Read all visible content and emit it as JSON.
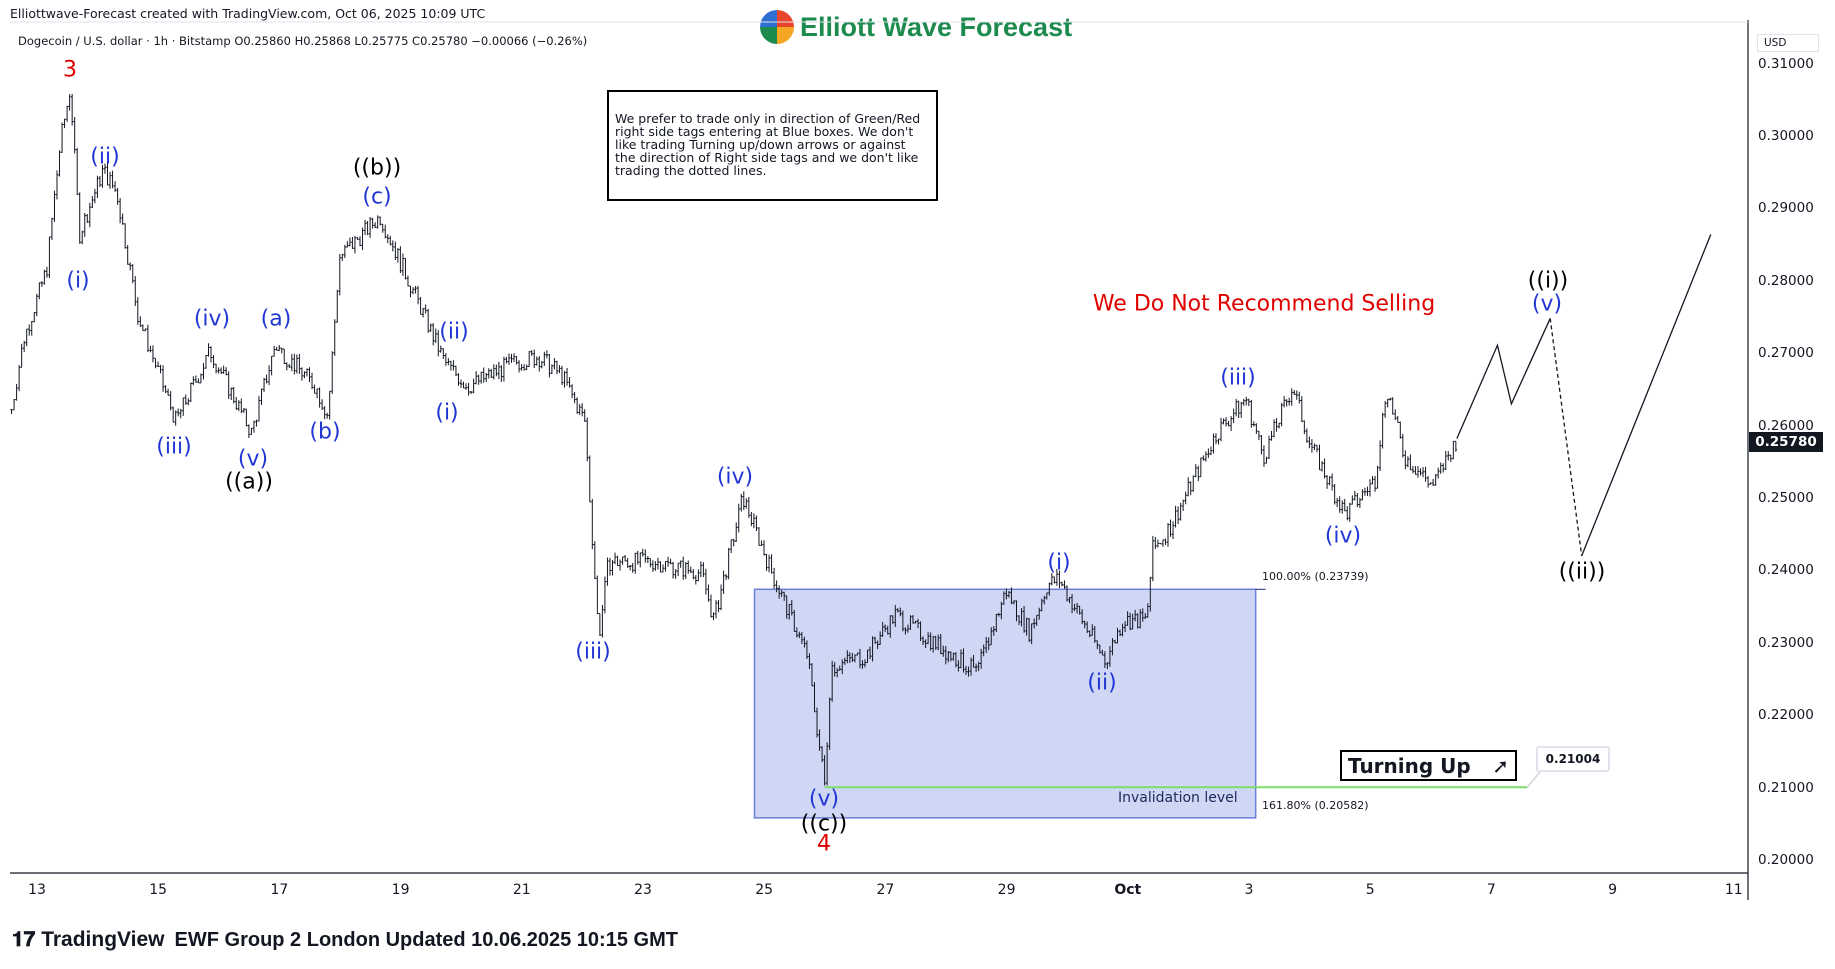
{
  "header": {
    "created": "Elliottwave-Forecast created with TradingView.com, Oct 06, 2025 10:09 UTC",
    "legend": "Dogecoin / U.S. dollar · 1h · Bitstamp  O0.25860  H0.25868  L0.25775  C0.25780  −0.00066 (−0.26%)",
    "logo": "Elliott Wave Forecast"
  },
  "note": "We prefer to trade only in direction of Green/Red right side tags entering at Blue boxes. We don't like trading Turning up/down arrows or against the direction of Right side tags and we don't like trading the dotted lines.",
  "warning": "We Do Not Recommend Selling",
  "fib": {
    "top": "100.00% (0.23739)",
    "bottom": "161.80% (0.20582)"
  },
  "invalidation": {
    "label": "Invalidation level",
    "value": "0.21004"
  },
  "turning": {
    "label": "Turning Up",
    "icon": "arrow-up-right-icon"
  },
  "axis": {
    "currency": "USD",
    "last_price": "0.25780"
  },
  "footer": {
    "brand": "TradingView",
    "text": "EWF Group 2 London Updated 10.06.2025 10:15 GMT"
  },
  "waves": [
    {
      "t": "3",
      "c": "red"
    },
    {
      "t": "(i)",
      "c": "blue"
    },
    {
      "t": "(ii)",
      "c": "blue"
    },
    {
      "t": "(iii)",
      "c": "blue"
    },
    {
      "t": "(iv)",
      "c": "blue"
    },
    {
      "t": "(v)",
      "c": "blue"
    },
    {
      "t": "((a))",
      "c": "black"
    },
    {
      "t": "(a)",
      "c": "blue"
    },
    {
      "t": "(b)",
      "c": "blue"
    },
    {
      "t": "((b))",
      "c": "black"
    },
    {
      "t": "(c)",
      "c": "blue"
    },
    {
      "t": "(i)",
      "c": "blue"
    },
    {
      "t": "(ii)",
      "c": "blue"
    },
    {
      "t": "(iii)",
      "c": "blue"
    },
    {
      "t": "(iv)",
      "c": "blue"
    },
    {
      "t": "(v)",
      "c": "blue"
    },
    {
      "t": "((c))",
      "c": "black"
    },
    {
      "t": "4",
      "c": "red"
    },
    {
      "t": "(i)",
      "c": "blue"
    },
    {
      "t": "(ii)",
      "c": "blue"
    },
    {
      "t": "(iii)",
      "c": "blue"
    },
    {
      "t": "(iv)",
      "c": "blue"
    },
    {
      "t": "((i))",
      "c": "black"
    },
    {
      "t": "(v)",
      "c": "blue"
    },
    {
      "t": "((ii))",
      "c": "black"
    }
  ],
  "chart_data": {
    "type": "line",
    "title": "Dogecoin / U.S. dollar · 1h · Bitstamp",
    "xlabel": "",
    "ylabel": "USD",
    "x_unit": "days since Sep 13 2025",
    "xlim": [
      -0.6,
      28.5
    ],
    "ylim": [
      0.1983,
      0.3121
    ],
    "yticks": [
      "0.31000",
      "0.30000",
      "0.29000",
      "0.28000",
      "0.27000",
      "0.26000",
      "0.25000",
      "0.24000",
      "0.23000",
      "0.22000",
      "0.21000",
      "0.20000"
    ],
    "ytick_values": [
      0.31,
      0.3,
      0.29,
      0.28,
      0.27,
      0.26,
      0.25,
      0.24,
      0.23,
      0.22,
      0.21,
      0.2
    ],
    "xticks": [
      "13",
      "15",
      "17",
      "19",
      "21",
      "23",
      "25",
      "27",
      "29",
      "Oct",
      "3",
      "5",
      "7",
      "9",
      "11"
    ],
    "xtick_values": [
      0,
      2,
      4,
      6,
      8,
      10,
      12,
      14,
      16,
      18,
      20,
      22,
      24,
      26,
      28
    ],
    "price_path": [
      [
        -0.42,
        0.2622
      ],
      [
        -0.22,
        0.2719
      ],
      [
        0.16,
        0.2816
      ],
      [
        0.39,
        0.2994
      ],
      [
        0.55,
        0.3066
      ],
      [
        0.7,
        0.2864
      ],
      [
        1.09,
        0.2953
      ],
      [
        1.32,
        0.2921
      ],
      [
        1.67,
        0.2751
      ],
      [
        2.29,
        0.2606
      ],
      [
        2.48,
        0.2638
      ],
      [
        2.86,
        0.2703
      ],
      [
        3.54,
        0.259
      ],
      [
        3.93,
        0.2711
      ],
      [
        4.6,
        0.2654
      ],
      [
        4.8,
        0.2614
      ],
      [
        4.99,
        0.2832
      ],
      [
        5.66,
        0.2889
      ],
      [
        6.05,
        0.2816
      ],
      [
        6.73,
        0.2687
      ],
      [
        7.11,
        0.2654
      ],
      [
        7.88,
        0.2687
      ],
      [
        8.27,
        0.2695
      ],
      [
        8.66,
        0.267
      ],
      [
        9.04,
        0.2606
      ],
      [
        9.27,
        0.2307
      ],
      [
        9.43,
        0.2412
      ],
      [
        10.2,
        0.2412
      ],
      [
        10.97,
        0.2396
      ],
      [
        11.17,
        0.2331
      ],
      [
        11.65,
        0.2501
      ],
      [
        12.13,
        0.2396
      ],
      [
        12.71,
        0.2283
      ],
      [
        13.0,
        0.2102
      ],
      [
        13.1,
        0.2267
      ],
      [
        13.68,
        0.2283
      ],
      [
        14.16,
        0.2339
      ],
      [
        14.83,
        0.2299
      ],
      [
        15.51,
        0.2258
      ],
      [
        15.99,
        0.2372
      ],
      [
        16.38,
        0.2315
      ],
      [
        16.67,
        0.238
      ],
      [
        16.86,
        0.2388
      ],
      [
        17.63,
        0.2275
      ],
      [
        17.92,
        0.2331
      ],
      [
        18.31,
        0.2331
      ],
      [
        18.41,
        0.2428
      ],
      [
        18.7,
        0.246
      ],
      [
        19.08,
        0.2525
      ],
      [
        19.47,
        0.259
      ],
      [
        19.95,
        0.2638
      ],
      [
        20.24,
        0.2557
      ],
      [
        20.72,
        0.2654
      ],
      [
        21.01,
        0.2574
      ],
      [
        21.59,
        0.2477
      ],
      [
        22.08,
        0.2525
      ],
      [
        22.27,
        0.2654
      ],
      [
        22.56,
        0.2557
      ],
      [
        23.04,
        0.2517
      ],
      [
        23.43,
        0.2582
      ]
    ],
    "projection_solid_1": [
      [
        23.43,
        0.2582
      ],
      [
        24.1,
        0.2711
      ],
      [
        24.33,
        0.263
      ],
      [
        24.97,
        0.2748
      ]
    ],
    "projection_dashed": [
      [
        24.97,
        0.2748
      ],
      [
        25.49,
        0.242
      ]
    ],
    "projection_solid_2": [
      [
        25.49,
        0.242
      ],
      [
        27.62,
        0.2864
      ]
    ],
    "blue_box": {
      "x": [
        11.84,
        20.11
      ],
      "y": [
        0.20582,
        0.23739
      ]
    },
    "invalidation_line": {
      "x": [
        13.0,
        24.59
      ],
      "y": 0.21004
    },
    "last_price": 0.2578
  }
}
